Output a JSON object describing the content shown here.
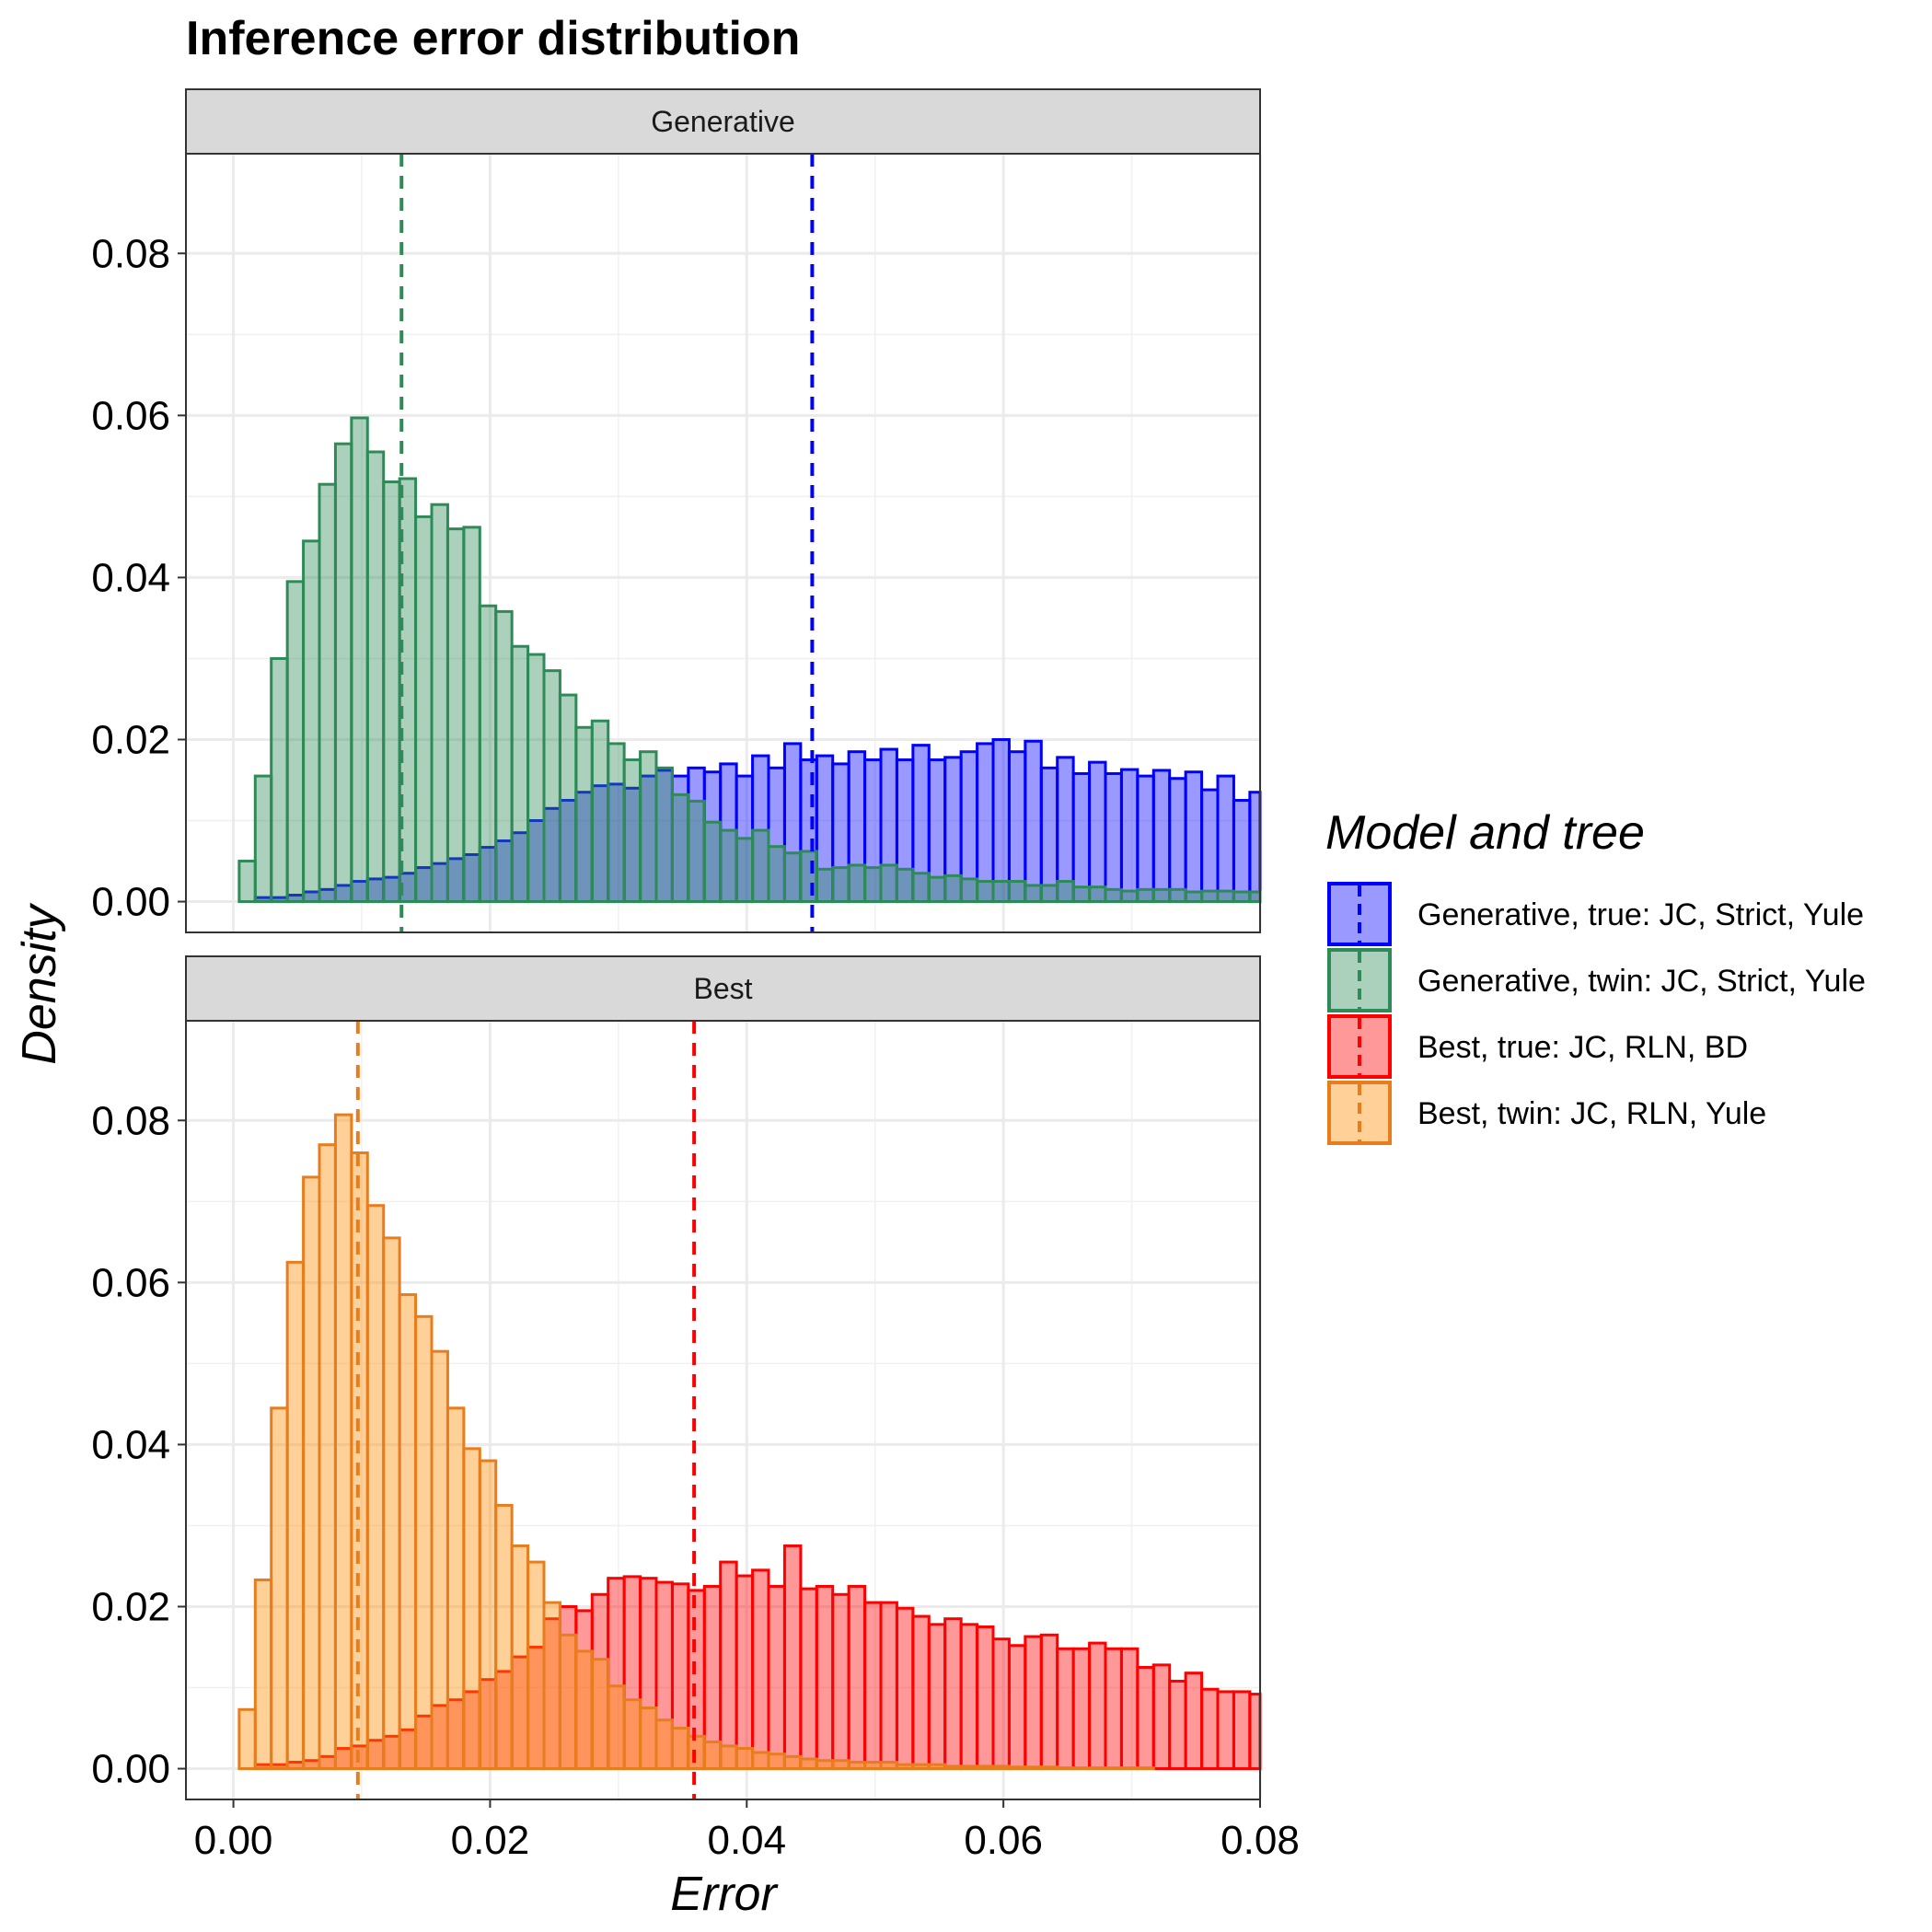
{
  "chart_data": {
    "type": "bar",
    "subtype": "histogram",
    "title": "Inference error distribution",
    "xlabel": "Error",
    "ylabel": "Density",
    "xlim": [
      -0.0037,
      0.08
    ],
    "ylim": [
      -0.0038,
      0.0923
    ],
    "x_ticks": [
      "0.00",
      "0.02",
      "0.04",
      "0.06",
      "0.08"
    ],
    "y_ticks": [
      "0.00",
      "0.02",
      "0.04",
      "0.06",
      "0.08"
    ],
    "bin_width": 0.00125,
    "first_bin_start": -0.0008,
    "grid": true,
    "legend": {
      "title": "Model and tree",
      "position": "right",
      "entries": [
        {
          "label": "Generative, true: JC, Strict, Yule",
          "fill": "#0000ff",
          "stroke": "#0000ff"
        },
        {
          "label": "Generative, twin: JC, Strict, Yule",
          "fill": "#2e8b57",
          "stroke": "#2e8b57"
        },
        {
          "label": "Best, true: JC, RLN, BD",
          "fill": "#ff0000",
          "stroke": "#ff0000"
        },
        {
          "label": "Best, twin: JC, RLN, Yule",
          "fill": "#ff8c00",
          "stroke": "#e87d1e"
        }
      ]
    },
    "panels": [
      {
        "name": "Generative",
        "series": [
          {
            "name": "Generative, true: JC, Strict, Yule",
            "fill": "#0000ff",
            "stroke": "#0000ff",
            "fill_opacity": 0.4,
            "mean": 0.0451,
            "values": [
              0,
              0,
              0.0005,
              0.0005,
              0.0008,
              0.0012,
              0.0015,
              0.002,
              0.0025,
              0.0028,
              0.003,
              0.0035,
              0.0042,
              0.0047,
              0.0053,
              0.0058,
              0.0067,
              0.0075,
              0.0085,
              0.01,
              0.0115,
              0.0125,
              0.0135,
              0.0143,
              0.0145,
              0.014,
              0.0155,
              0.0162,
              0.0155,
              0.0165,
              0.016,
              0.017,
              0.0155,
              0.018,
              0.0165,
              0.0195,
              0.0175,
              0.018,
              0.017,
              0.0185,
              0.0175,
              0.0188,
              0.0175,
              0.0193,
              0.0175,
              0.0178,
              0.0185,
              0.0195,
              0.02,
              0.0185,
              0.0198,
              0.0165,
              0.0178,
              0.0158,
              0.0172,
              0.0158,
              0.0163,
              0.0155,
              0.0162,
              0.0152,
              0.016,
              0.0138,
              0.0155,
              0.0125,
              0.0135,
              0.0138,
              0.014,
              0.01,
              0.0115,
              0.01,
              0.0122,
              0.0085,
              0.0095,
              0.009,
              0.0095,
              0.0083,
              0.0083,
              0.007,
              0.0083,
              0.0058,
              0.0072,
              0.0078,
              0.0075,
              0.0052,
              0.0055
            ]
          },
          {
            "name": "Generative, twin: JC, Strict, Yule",
            "fill": "#2e8b57",
            "stroke": "#2e8b57",
            "fill_opacity": 0.4,
            "mean": 0.0131,
            "values": [
              0,
              0.005,
              0.0155,
              0.03,
              0.0395,
              0.0445,
              0.0515,
              0.0565,
              0.0597,
              0.0555,
              0.0518,
              0.0522,
              0.0475,
              0.049,
              0.046,
              0.0462,
              0.0365,
              0.0358,
              0.0315,
              0.0305,
              0.0285,
              0.0255,
              0.0215,
              0.0223,
              0.0195,
              0.0175,
              0.0185,
              0.0165,
              0.0132,
              0.0124,
              0.0098,
              0.0088,
              0.0078,
              0.0088,
              0.0068,
              0.006,
              0.0062,
              0.004,
              0.0042,
              0.0045,
              0.0042,
              0.0045,
              0.004,
              0.0035,
              0.003,
              0.0032,
              0.0028,
              0.0025,
              0.0025,
              0.0025,
              0.002,
              0.002,
              0.0025,
              0.0018,
              0.0018,
              0.0015,
              0.0013,
              0.0015,
              0.0015,
              0.0015,
              0.0012,
              0.0013,
              0.0013,
              0.0012,
              0.0012,
              0.001,
              0.001,
              0.001,
              0.0008,
              0.0008,
              0.0008,
              0.0008,
              0.0008,
              0.0008,
              0.0008,
              0.0008,
              0.0008,
              0.0008,
              0.0008,
              0.0008,
              0.0008,
              0.0008,
              0.0008,
              0.0008,
              0.0008
            ]
          }
        ]
      },
      {
        "name": "Best",
        "series": [
          {
            "name": "Best, true: JC, RLN, BD",
            "fill": "#ff0000",
            "stroke": "#ff0000",
            "fill_opacity": 0.4,
            "mean": 0.0359,
            "values": [
              0,
              0,
              0.0005,
              0.0005,
              0.0008,
              0.001,
              0.0015,
              0.0025,
              0.0028,
              0.0035,
              0.004,
              0.0048,
              0.0065,
              0.0078,
              0.0085,
              0.0095,
              0.011,
              0.012,
              0.0138,
              0.015,
              0.0185,
              0.02,
              0.0195,
              0.0215,
              0.0235,
              0.0237,
              0.0235,
              0.023,
              0.0228,
              0.022,
              0.0225,
              0.0255,
              0.0238,
              0.0245,
              0.0225,
              0.0275,
              0.0222,
              0.0225,
              0.0215,
              0.0225,
              0.0205,
              0.0205,
              0.0198,
              0.0188,
              0.0178,
              0.0185,
              0.0178,
              0.0175,
              0.016,
              0.0152,
              0.0163,
              0.0165,
              0.0148,
              0.0148,
              0.0155,
              0.0148,
              0.0148,
              0.0125,
              0.0128,
              0.0108,
              0.0118,
              0.0098,
              0.0095,
              0.0095,
              0.0092,
              0.0085,
              0.0092,
              0.0083,
              0.008,
              0.0085,
              0.0075,
              0.0075,
              0.0068,
              0.0065,
              0.006,
              0.0068,
              0.0063,
              0.0052,
              0.004,
              0.0042,
              0.0045,
              0.0038,
              0.0042,
              0.0045,
              0.0048,
              0.0035,
              0.004,
              0.0033,
              0.0035
            ]
          },
          {
            "name": "Best, twin: JC, RLN, Yule",
            "fill": "#ff8c00",
            "stroke": "#e87d1e",
            "fill_opacity": 0.4,
            "mean": 0.0097,
            "values": [
              0,
              0.0073,
              0.0233,
              0.0445,
              0.0625,
              0.073,
              0.077,
              0.0807,
              0.076,
              0.0695,
              0.0655,
              0.0585,
              0.0558,
              0.0515,
              0.0445,
              0.0395,
              0.038,
              0.0325,
              0.0275,
              0.0255,
              0.0205,
              0.0165,
              0.0145,
              0.0135,
              0.0102,
              0.0085,
              0.0075,
              0.006,
              0.005,
              0.004,
              0.0033,
              0.0028,
              0.0025,
              0.002,
              0.0018,
              0.0015,
              0.0012,
              0.001,
              0.001,
              0.0008,
              0.0008,
              0.0008,
              0.0005,
              0.0005,
              0.0005,
              0.0003,
              0.0003,
              0.0003,
              0.0003,
              0.0002,
              0.0002,
              0.0002,
              0.0001,
              0.0001,
              0.0001,
              0.0001,
              0.0001,
              0.0001,
              0,
              0,
              0,
              0,
              0,
              0,
              0,
              0,
              0,
              0,
              0,
              0,
              0,
              0,
              0,
              0,
              0,
              0,
              0,
              0,
              0,
              0,
              0,
              0,
              0,
              0,
              0
            ]
          }
        ]
      }
    ]
  }
}
